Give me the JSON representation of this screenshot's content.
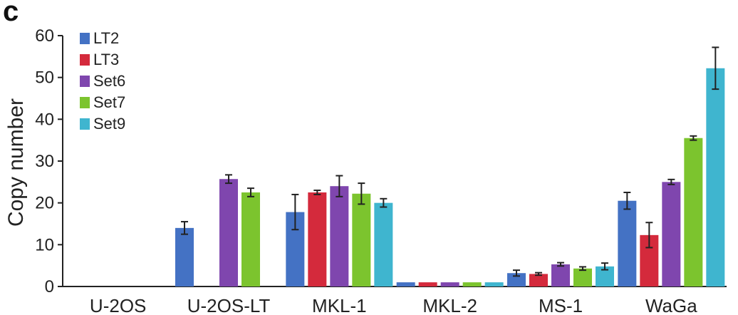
{
  "panel_label": "c",
  "chart_data": {
    "type": "bar",
    "title": "",
    "xlabel": "",
    "ylabel": "Copy number",
    "ylim": [
      0,
      60
    ],
    "yticks": [
      0,
      10,
      20,
      30,
      40,
      50,
      60
    ],
    "grid": false,
    "legend_position": "top-left",
    "categories": [
      "U-2OS",
      "U-2OS-LT",
      "MKL-1",
      "MKL-2",
      "MS-1",
      "WaGa"
    ],
    "series": [
      {
        "name": "LT2",
        "color": "#4472c4",
        "values": [
          0,
          14,
          17.8,
          1,
          3.2,
          20.5
        ],
        "errors": [
          0,
          1.5,
          4.2,
          0,
          0.7,
          2.0
        ]
      },
      {
        "name": "LT3",
        "color": "#d42a3c",
        "values": [
          0,
          0,
          22.5,
          1,
          3.0,
          12.3
        ],
        "errors": [
          0,
          0,
          0.5,
          0,
          0.3,
          3.0
        ]
      },
      {
        "name": "Set6",
        "color": "#7f46ae",
        "values": [
          0,
          25.7,
          24.0,
          1,
          5.3,
          25.0
        ],
        "errors": [
          0,
          1.0,
          2.5,
          0,
          0.4,
          0.6
        ]
      },
      {
        "name": "Set7",
        "color": "#7cc42e",
        "values": [
          0,
          22.5,
          22.2,
          1,
          4.3,
          35.5
        ],
        "errors": [
          0,
          1.0,
          2.5,
          0,
          0.4,
          0.5
        ]
      },
      {
        "name": "Set9",
        "color": "#3fb5cf",
        "values": [
          0,
          0,
          20.0,
          1,
          4.8,
          52.2
        ],
        "errors": [
          0,
          0,
          1.0,
          0,
          0.8,
          5.0
        ]
      }
    ]
  }
}
